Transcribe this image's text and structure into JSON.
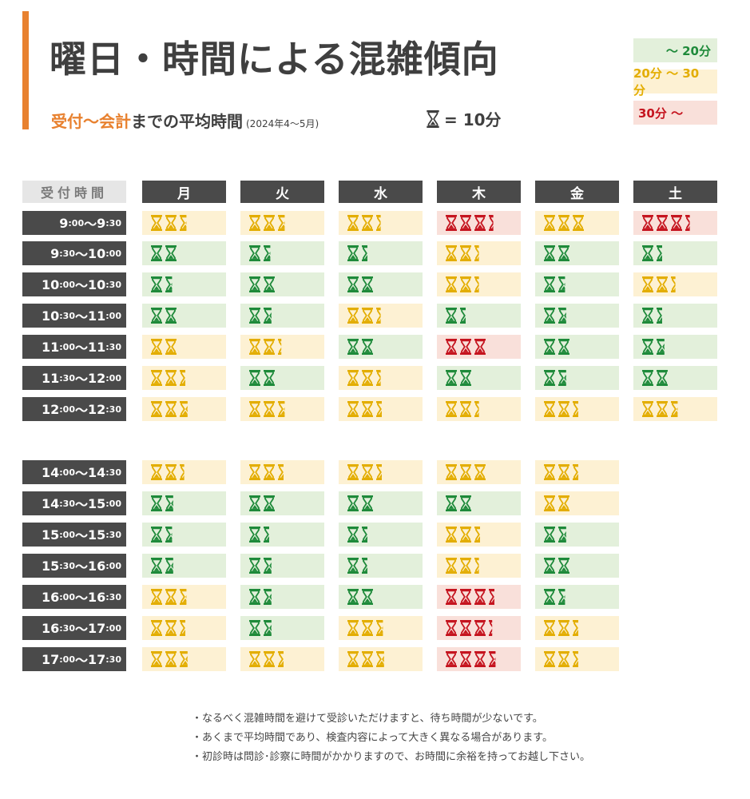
{
  "header": {
    "title": "曜日・時間による混雑傾向",
    "subtitle_highlight": "受付～会計",
    "subtitle_rest": "までの平均時間",
    "subtitle_period": "(2024年4～5月)",
    "unit_label": "= 10分"
  },
  "legend": [
    {
      "label": "～ 20分",
      "level": "g"
    },
    {
      "label": "20分 ～ 30分",
      "level": "y"
    },
    {
      "label": "30分 ～",
      "level": "r"
    }
  ],
  "colors": {
    "accent": "#e8812f",
    "green": "#1e8a3a",
    "yellow": "#e3ad00",
    "red": "#c5141f",
    "green_bg": "#e3f0db",
    "yellow_bg": "#fdf1d3",
    "red_bg": "#f9e0da"
  },
  "icons": {
    "unit": "hourglass-icon",
    "cell": "hourglass-icon"
  },
  "table": {
    "time_header": "受付時間",
    "days": [
      "月",
      "火",
      "水",
      "木",
      "金",
      "土"
    ],
    "rows": [
      {
        "start_h": "9",
        "start_m": ":00",
        "sep": " ～ ",
        "end_h": "9",
        "end_m": ":30",
        "cells": [
          [
            "y",
            2.6
          ],
          [
            "y",
            2.6
          ],
          [
            "y",
            2.4
          ],
          [
            "r",
            3.4
          ],
          [
            "y",
            3
          ],
          [
            "r",
            3.4
          ]
        ]
      },
      {
        "start_h": "9",
        "start_m": ":30",
        "sep": " ～ ",
        "end_h": "10",
        "end_m": ":00",
        "cells": [
          [
            "g",
            2
          ],
          [
            "g",
            1.6
          ],
          [
            "g",
            1.5
          ],
          [
            "y",
            2.4
          ],
          [
            "g",
            2
          ],
          [
            "g",
            1.5
          ]
        ]
      },
      {
        "start_h": "10",
        "start_m": ":00",
        "sep": " ～ ",
        "end_h": "10",
        "end_m": ":30",
        "cells": [
          [
            "g",
            1.6
          ],
          [
            "g",
            2
          ],
          [
            "g",
            2
          ],
          [
            "y",
            2.4
          ],
          [
            "g",
            1.6
          ],
          [
            "y",
            2.4
          ]
        ]
      },
      {
        "start_h": "10",
        "start_m": ":30",
        "sep": " ～ ",
        "end_h": "11",
        "end_m": ":00",
        "cells": [
          [
            "g",
            2
          ],
          [
            "g",
            1.7
          ],
          [
            "y",
            2.4
          ],
          [
            "g",
            1.5
          ],
          [
            "g",
            1.7
          ],
          [
            "g",
            1.5
          ]
        ]
      },
      {
        "start_h": "11",
        "start_m": ":00",
        "sep": " ～ ",
        "end_h": "11",
        "end_m": ":30",
        "cells": [
          [
            "y",
            2
          ],
          [
            "y",
            2.3
          ],
          [
            "g",
            2
          ],
          [
            "r",
            3
          ],
          [
            "g",
            2
          ],
          [
            "g",
            1.7
          ]
        ]
      },
      {
        "start_h": "11",
        "start_m": ":30",
        "sep": " ～ ",
        "end_h": "12",
        "end_m": ":00",
        "cells": [
          [
            "y",
            2.5
          ],
          [
            "g",
            2
          ],
          [
            "y",
            2.4
          ],
          [
            "g",
            2
          ],
          [
            "g",
            1.7
          ],
          [
            "g",
            2
          ]
        ]
      },
      {
        "start_h": "12",
        "start_m": ":00",
        "sep": " ～ ",
        "end_h": "12",
        "end_m": ":30",
        "cells": [
          [
            "y",
            2.7
          ],
          [
            "y",
            2.6
          ],
          [
            "y",
            2.5
          ],
          [
            "y",
            2.4
          ],
          [
            "y",
            2.5
          ],
          [
            "y",
            2.6
          ]
        ]
      },
      {
        "start_h": "14",
        "start_m": ":00",
        "sep": " ～ ",
        "end_h": "14",
        "end_m": ":30",
        "cells": [
          [
            "y",
            2.4
          ],
          [
            "y",
            2.5
          ],
          [
            "y",
            2.5
          ],
          [
            "y",
            3
          ],
          [
            "y",
            2.5
          ],
          null
        ]
      },
      {
        "start_h": "14",
        "start_m": ":30",
        "sep": " ～ ",
        "end_h": "15",
        "end_m": ":00",
        "cells": [
          [
            "g",
            1.7
          ],
          [
            "g",
            2
          ],
          [
            "g",
            2
          ],
          [
            "g",
            2
          ],
          [
            "y",
            2
          ],
          null
        ]
      },
      {
        "start_h": "15",
        "start_m": ":00",
        "sep": " ～ ",
        "end_h": "15",
        "end_m": ":30",
        "cells": [
          [
            "g",
            1.6
          ],
          [
            "g",
            1.5
          ],
          [
            "g",
            1.5
          ],
          [
            "y",
            2.5
          ],
          [
            "g",
            1.7
          ],
          null
        ]
      },
      {
        "start_h": "15",
        "start_m": ":30",
        "sep": " ～ ",
        "end_h": "16",
        "end_m": ":00",
        "cells": [
          [
            "g",
            1.7
          ],
          [
            "g",
            1.7
          ],
          [
            "g",
            1.5
          ],
          [
            "y",
            2.4
          ],
          [
            "g",
            2
          ],
          null
        ]
      },
      {
        "start_h": "16",
        "start_m": ":00",
        "sep": " ～ ",
        "end_h": "16",
        "end_m": ":30",
        "cells": [
          [
            "y",
            2.6
          ],
          [
            "g",
            1.7
          ],
          [
            "g",
            2
          ],
          [
            "r",
            3.5
          ],
          [
            "g",
            1.6
          ],
          null
        ]
      },
      {
        "start_h": "16",
        "start_m": ":30",
        "sep": " ～ ",
        "end_h": "17",
        "end_m": ":00",
        "cells": [
          [
            "y",
            2.5
          ],
          [
            "g",
            1.7
          ],
          [
            "y",
            2.6
          ],
          [
            "r",
            3.3
          ],
          [
            "y",
            2.5
          ],
          null
        ]
      },
      {
        "start_h": "17",
        "start_m": ":00",
        "sep": " ～ ",
        "end_h": "17",
        "end_m": ":30",
        "cells": [
          [
            "y",
            2.7
          ],
          [
            "y",
            2.5
          ],
          [
            "y",
            2.7
          ],
          [
            "r",
            3.6
          ],
          [
            "y",
            2.5
          ],
          null
        ]
      }
    ]
  },
  "notes": [
    "・なるべく混雑時間を避けて受診いただけますと、待ち時間が少ないです。",
    "・あくまで平均時間であり、検査内容によって大きく異なる場合があります。",
    "・初診時は問診･診察に時間がかかりますので、お時間に余裕を持ってお越し下さい。"
  ]
}
